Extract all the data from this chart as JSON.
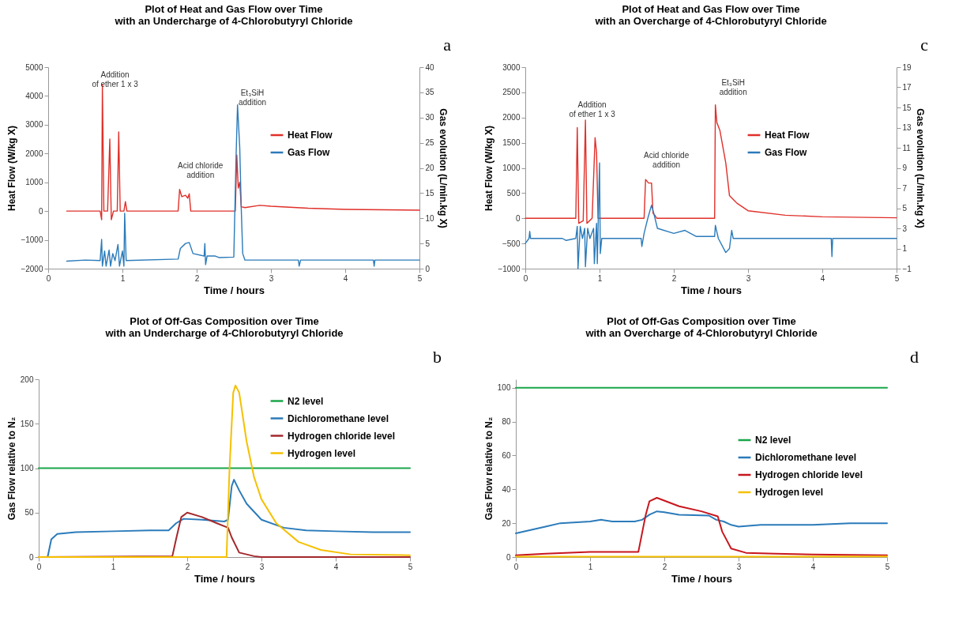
{
  "chart_data": [
    {
      "type": "line",
      "title": "Plot of Heat and Gas Flow over Time\nwith an Undercharge of 4-Chlorobutyryl Chloride",
      "xlabel": "Time / hours",
      "ylabel": "Heat Flow (W/kg X)",
      "y2label": "Gas evolution (L/min.kg X)",
      "xlim": [
        0,
        5
      ],
      "xticks": [
        0,
        1,
        2,
        3,
        4,
        5
      ],
      "ylim": [
        -2000,
        5000
      ],
      "yticks": [
        -2000,
        -1000,
        0,
        1000,
        2000,
        3000,
        4000,
        5000
      ],
      "y2lim": [
        0,
        40
      ],
      "y2ticks": [
        0,
        5,
        10,
        15,
        20,
        25,
        30,
        35,
        40
      ],
      "legend": "right",
      "annotations": [
        "a",
        "Addition\nof ether 1 x 3",
        "Acid chloride\naddition",
        "Et₃SiH\naddition"
      ],
      "series": [
        {
          "name": "Heat Flow",
          "color": "#e0302a",
          "x": [
            0.25,
            0.7,
            0.72,
            0.73,
            0.75,
            0.8,
            0.83,
            0.85,
            0.88,
            0.93,
            0.95,
            0.97,
            1.02,
            1.04,
            1.06,
            1.75,
            1.77,
            1.8,
            1.85,
            1.88,
            1.9,
            1.92,
            2.52,
            2.54,
            2.56,
            2.58,
            2.6,
            2.65,
            2.85,
            3,
            3.5,
            4,
            5
          ],
          "values": [
            0,
            0,
            -300,
            4400,
            0,
            0,
            2500,
            -300,
            0,
            0,
            2750,
            0,
            0,
            330,
            0,
            0,
            750,
            500,
            550,
            450,
            600,
            0,
            0,
            1950,
            800,
            1000,
            150,
            120,
            200,
            170,
            100,
            60,
            30
          ]
        },
        {
          "name": "Gas Flow",
          "color": "#2b7bba",
          "axis": "y2",
          "x": [
            0.25,
            0.5,
            0.7,
            0.72,
            0.73,
            0.76,
            0.78,
            0.82,
            0.84,
            0.87,
            0.9,
            0.94,
            0.96,
            1.0,
            1.02,
            1.03,
            1.05,
            1.75,
            1.78,
            1.85,
            1.9,
            1.95,
            2.1,
            2.11,
            2.12,
            2.14,
            2.25,
            2.3,
            2.5,
            2.53,
            2.55,
            2.58,
            2.6,
            2.62,
            2.65,
            3.37,
            3.38,
            3.4,
            4.38,
            4.39,
            4.4,
            5
          ],
          "values": [
            1.5,
            1.7,
            1.6,
            5.8,
            0.5,
            3.5,
            0.5,
            3.7,
            0.5,
            3,
            1.6,
            4.8,
            0.5,
            3.5,
            0.5,
            11,
            1.6,
            1.9,
            4,
            5,
            5.2,
            3,
            2.5,
            5,
            0.8,
            2.5,
            2.5,
            2.2,
            2.3,
            22,
            32.5,
            24,
            12,
            3,
            1.7,
            1.7,
            0.5,
            1.7,
            1.7,
            0.5,
            1.7,
            1.7
          ]
        }
      ]
    },
    {
      "type": "line",
      "title": "Plot of Heat and Gas Flow over Time\nwith an Overcharge of 4-Chlorobutyryl Chloride",
      "xlabel": "Time / hours",
      "ylabel": "Heat Flow (W/kg X)",
      "y2label": "Gas evolution (L/min.kg X)",
      "xlim": [
        0,
        5
      ],
      "xticks": [
        0,
        1,
        2,
        3,
        4,
        5
      ],
      "ylim": [
        -1000,
        3000
      ],
      "yticks": [
        -1000,
        -500,
        0,
        500,
        1000,
        1500,
        2000,
        2500,
        3000
      ],
      "y2lim": [
        -1,
        19
      ],
      "y2ticks": [
        -1,
        1,
        3,
        5,
        7,
        9,
        11,
        13,
        15,
        17,
        19
      ],
      "legend": "right",
      "annotations": [
        "c",
        "Addition\nof ether 1 x 3",
        "Acid chloride\naddition",
        "Et₃SiH\naddition"
      ],
      "series": [
        {
          "name": "Heat Flow",
          "color": "#e0302a",
          "x": [
            0,
            0.68,
            0.7,
            0.72,
            0.78,
            0.81,
            0.83,
            0.9,
            0.94,
            0.96,
            0.98,
            1.6,
            1.62,
            1.66,
            1.7,
            1.72,
            1.75,
            1.77,
            2.55,
            2.56,
            2.58,
            2.62,
            2.7,
            2.75,
            2.85,
            3,
            3.5,
            4,
            5
          ],
          "values": [
            0,
            0,
            1800,
            -100,
            -50,
            1950,
            -100,
            0,
            1600,
            1300,
            0,
            0,
            770,
            700,
            700,
            100,
            50,
            0,
            0,
            2250,
            1900,
            1750,
            1100,
            450,
            300,
            150,
            60,
            30,
            10
          ]
        },
        {
          "name": "Gas Flow",
          "color": "#2b7bba",
          "axis": "y2",
          "x": [
            0,
            0.05,
            0.06,
            0.07,
            0.5,
            0.55,
            0.68,
            0.7,
            0.71,
            0.74,
            0.77,
            0.8,
            0.81,
            0.84,
            0.87,
            0.92,
            0.93,
            0.96,
            0.97,
            1.0,
            1.01,
            1.03,
            1.56,
            1.57,
            1.6,
            1.65,
            1.7,
            1.73,
            1.78,
            2.0,
            2.15,
            2.3,
            2.55,
            2.56,
            2.6,
            2.7,
            2.75,
            2.78,
            2.8,
            4.12,
            4.13,
            4.14,
            5
          ],
          "values": [
            1.5,
            2,
            2.7,
            2,
            2,
            1.8,
            2,
            3.2,
            -1,
            3.2,
            2,
            3,
            -0.8,
            3,
            2,
            3,
            -0.5,
            3.5,
            -0.5,
            9.5,
            0.5,
            2,
            2,
            1.2,
            2.5,
            4,
            5.3,
            4.5,
            3,
            2.5,
            2.8,
            2.2,
            2.2,
            3.3,
            2,
            0.6,
            1,
            2.8,
            2,
            2,
            0.2,
            2,
            2
          ]
        }
      ]
    },
    {
      "type": "line",
      "title": "Plot of Off-Gas Composition over Time\nwith an Undercharge of 4-Chlorobutyryl Chloride",
      "xlabel": "Time / hours",
      "ylabel": "Gas Flow relative to N₂",
      "xlim": [
        0,
        5
      ],
      "xticks": [
        0,
        1,
        2,
        3,
        4,
        5
      ],
      "ylim": [
        0,
        200
      ],
      "yticks": [
        0,
        50,
        100,
        150,
        200
      ],
      "legend": "top right",
      "annotations": [
        "b"
      ],
      "series": [
        {
          "name": "N2 level",
          "color": "#1aa64a",
          "x": [
            0,
            5
          ],
          "values": [
            100,
            100
          ]
        },
        {
          "name": "Dichloromethane level",
          "color": "#2b7bba",
          "x": [
            0,
            0.12,
            0.17,
            0.25,
            0.5,
            1,
            1.5,
            1.75,
            1.85,
            1.95,
            2.2,
            2.5,
            2.55,
            2.6,
            2.63,
            2.7,
            2.8,
            3,
            3.3,
            3.6,
            4,
            4.5,
            5
          ],
          "values": [
            0,
            0,
            20,
            26,
            28,
            29,
            30,
            30,
            38,
            43,
            42,
            40,
            42,
            80,
            87,
            75,
            60,
            42,
            33,
            30,
            29,
            28,
            28
          ]
        },
        {
          "name": "Hydrogen chloride level",
          "color": "#a3282c",
          "x": [
            0,
            1.8,
            1.85,
            1.92,
            2.0,
            2.2,
            2.4,
            2.55,
            2.6,
            2.7,
            2.9,
            3,
            5
          ],
          "values": [
            0,
            1,
            20,
            45,
            50,
            45,
            38,
            33,
            22,
            5,
            1,
            0,
            0
          ]
        },
        {
          "name": "Hydrogen level",
          "color": "#f5c000",
          "x": [
            0,
            2.53,
            2.57,
            2.62,
            2.65,
            2.7,
            2.8,
            2.9,
            3.0,
            3.2,
            3.5,
            3.8,
            4.2,
            5
          ],
          "values": [
            0,
            0,
            100,
            185,
            193,
            185,
            130,
            90,
            65,
            38,
            17,
            8,
            3,
            2
          ]
        }
      ]
    },
    {
      "type": "line",
      "title": "Plot of Off-Gas Composition over Time\nwith an Overcharge of 4-Chlorobutyryl Chloride",
      "xlabel": "Time / hours",
      "ylabel": "Gas Flow relative to N₂",
      "xlim": [
        0,
        5
      ],
      "xticks": [
        0,
        1,
        2,
        3,
        4,
        5
      ],
      "ylim": [
        0,
        105
      ],
      "yticks": [
        0,
        20,
        40,
        60,
        80,
        100
      ],
      "legend": "right",
      "annotations": [
        "d"
      ],
      "series": [
        {
          "name": "N2 level",
          "color": "#1aa64a",
          "x": [
            0,
            5
          ],
          "values": [
            100,
            100
          ]
        },
        {
          "name": "Dichloromethane level",
          "color": "#2b7bba",
          "x": [
            0,
            0.2,
            0.4,
            0.6,
            1,
            1.15,
            1.3,
            1.6,
            1.7,
            1.8,
            1.9,
            2.0,
            2.2,
            2.6,
            2.7,
            2.8,
            2.9,
            3,
            3.3,
            4,
            4.5,
            5
          ],
          "values": [
            14,
            16,
            18,
            20,
            21,
            22,
            21,
            21,
            22,
            25,
            27,
            26.5,
            25,
            24.5,
            22,
            21,
            19,
            18,
            19,
            19,
            20,
            20
          ]
        },
        {
          "name": "Hydrogen chloride level",
          "color": "#c8161d",
          "x": [
            0,
            0.4,
            1,
            1.65,
            1.75,
            1.8,
            1.9,
            2.2,
            2.5,
            2.72,
            2.78,
            2.9,
            3.1,
            3.5,
            4,
            5
          ],
          "values": [
            1,
            2,
            3,
            3,
            25,
            33,
            35,
            30,
            27,
            24,
            15,
            5,
            2.5,
            2,
            1.5,
            1
          ]
        },
        {
          "name": "Hydrogen level",
          "color": "#f5c000",
          "x": [
            0,
            5
          ],
          "values": [
            0.2,
            0.3
          ]
        }
      ]
    }
  ]
}
